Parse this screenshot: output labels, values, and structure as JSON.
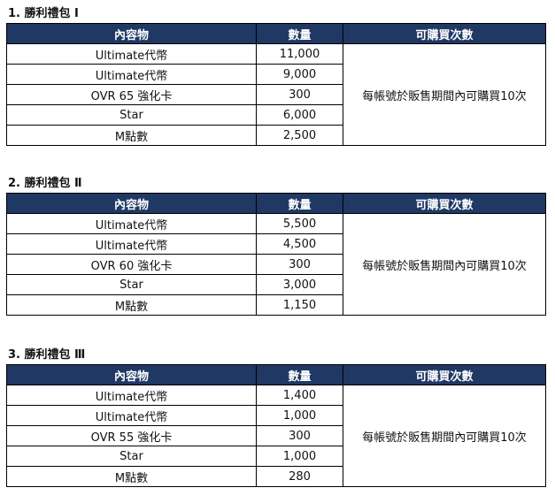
{
  "columns": [
    "內容物",
    "數量",
    "可購買次數"
  ],
  "packs": [
    {
      "title": "1. 勝利禮包 Ⅰ",
      "limit": "每帳號於販售期間內可購買10次",
      "rows": [
        [
          "Ultimate代幣",
          "11,000"
        ],
        [
          "Ultimate代幣",
          "9,000"
        ],
        [
          "OVR 65 強化卡",
          "300"
        ],
        [
          "Star",
          "6,000"
        ],
        [
          "M點數",
          "2,500"
        ]
      ]
    },
    {
      "title": "2. 勝利禮包 Ⅱ",
      "limit": "每帳號於販售期間內可購買10次",
      "rows": [
        [
          "Ultimate代幣",
          "5,500"
        ],
        [
          "Ultimate代幣",
          "4,500"
        ],
        [
          "OVR 60 強化卡",
          "300"
        ],
        [
          "Star",
          "3,000"
        ],
        [
          "M點數",
          "1,150"
        ]
      ]
    },
    {
      "title": "3. 勝利禮包 Ⅲ",
      "limit": "每帳號於販售期間內可購買10次",
      "rows": [
        [
          "Ultimate代幣",
          "1,400"
        ],
        [
          "Ultimate代幣",
          "1,000"
        ],
        [
          "OVR 55 強化卡",
          "300"
        ],
        [
          "Star",
          "1,000"
        ],
        [
          "M點數",
          "280"
        ]
      ]
    }
  ],
  "colors": {
    "header_bg": "#203864",
    "header_text": "#ffffff"
  }
}
